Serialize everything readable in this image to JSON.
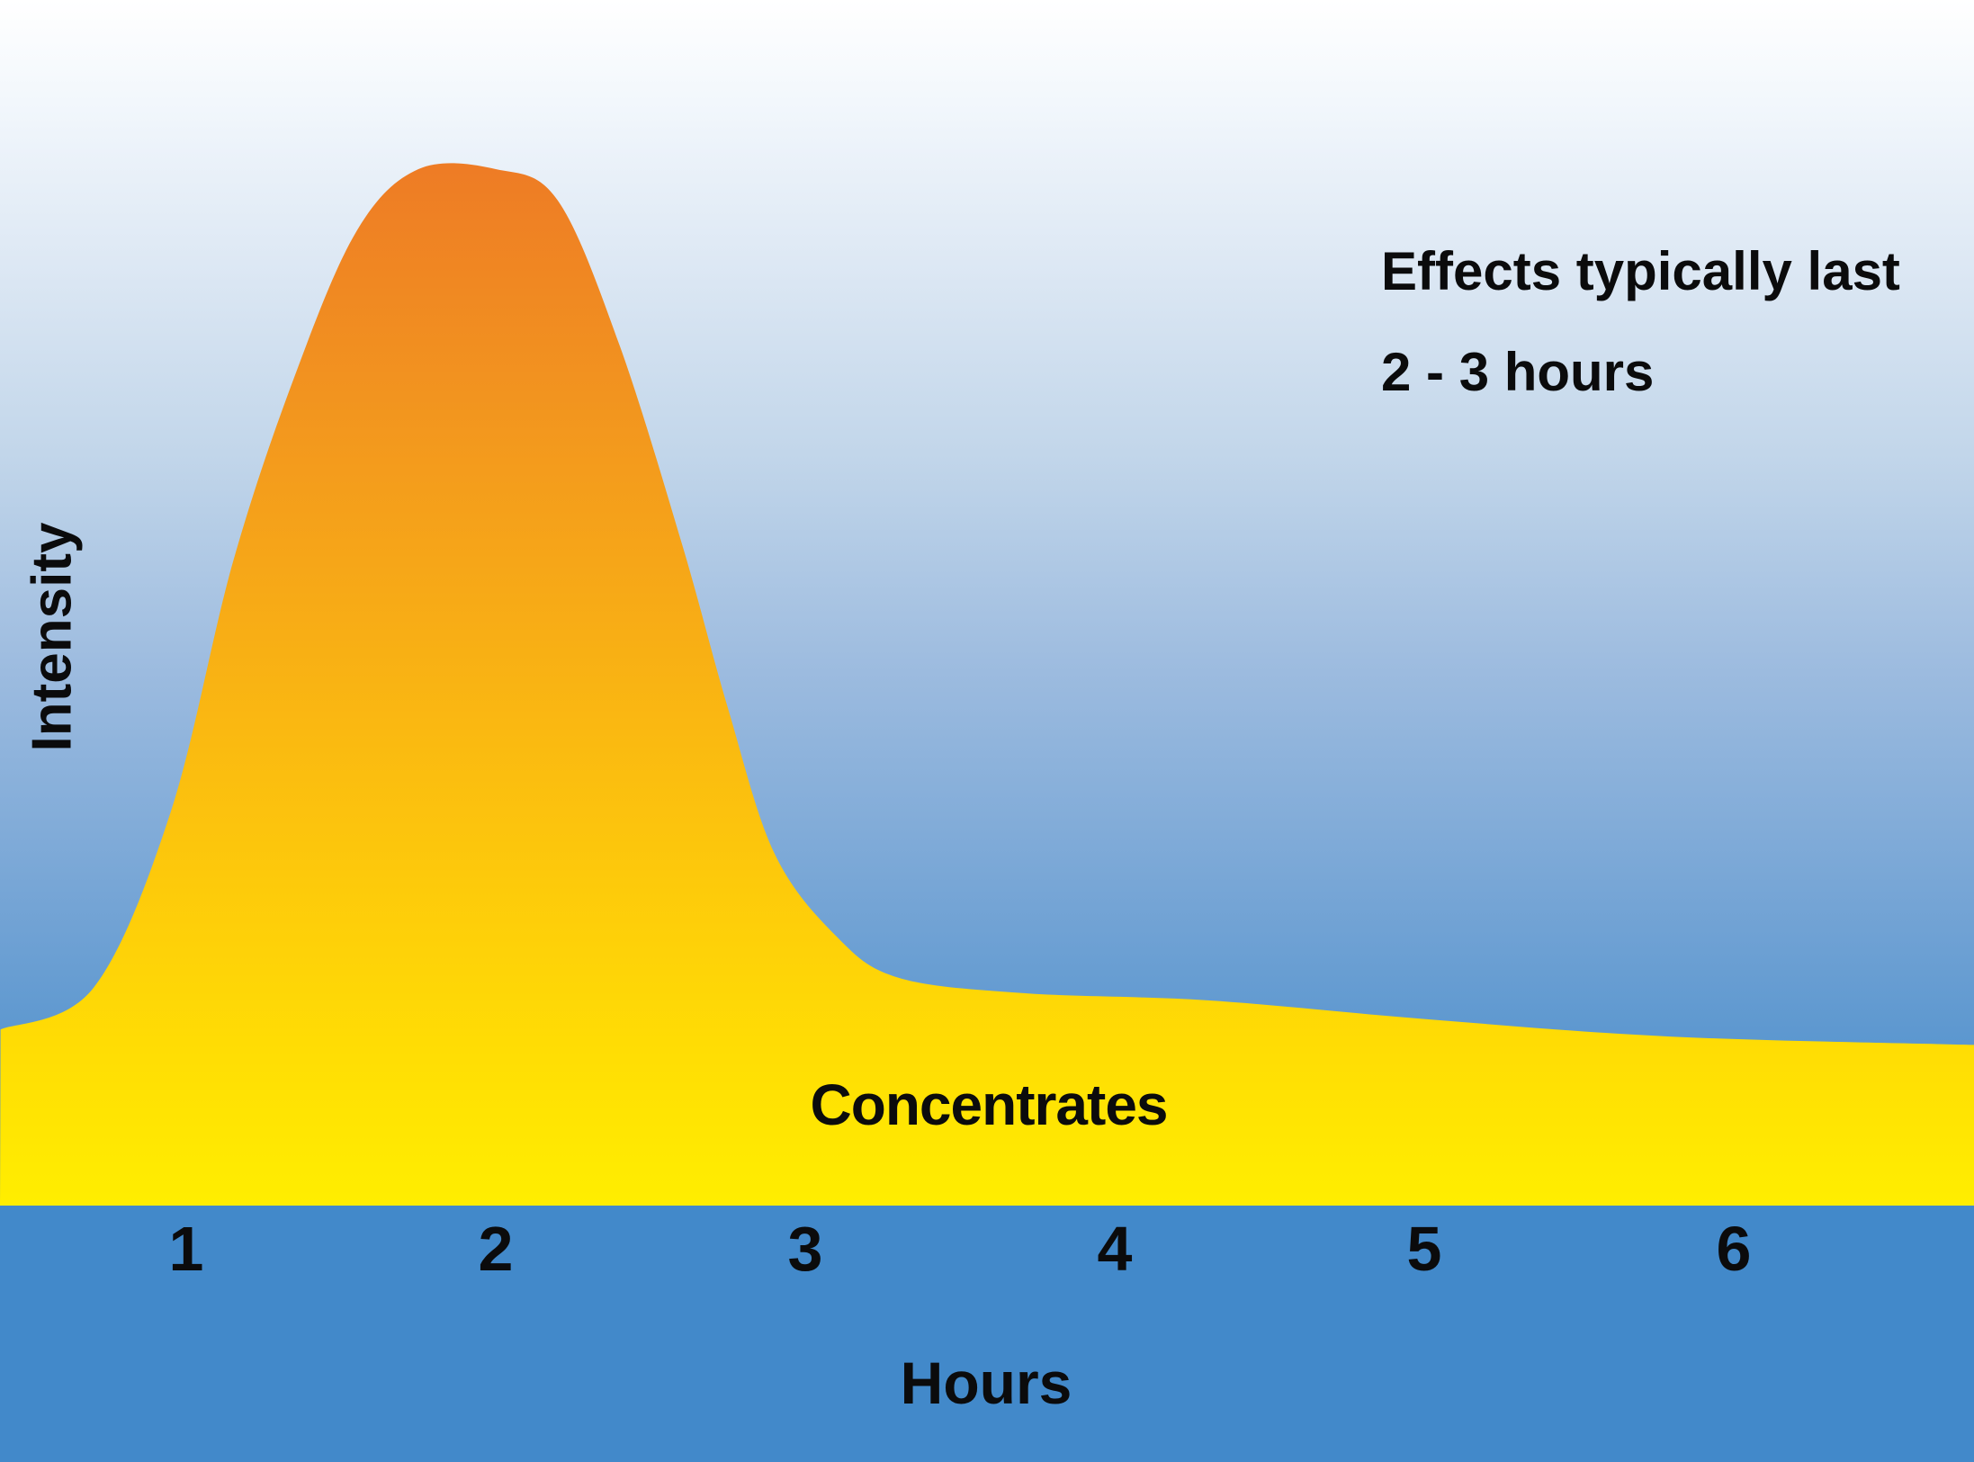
{
  "chart_data": {
    "type": "area",
    "title": "",
    "xlabel": "Hours",
    "ylabel": "Intensity",
    "x_ticks": [
      1,
      2,
      3,
      4,
      5,
      6
    ],
    "x_range_hours": [
      0.4,
      6.8
    ],
    "y_range": [
      0,
      100
    ],
    "y_tick_labels": [],
    "grid": false,
    "legend_position": "none",
    "series": [
      {
        "name": "Concentrates",
        "points": [
          {
            "hour": 0.4,
            "intensity": 17
          },
          {
            "hour": 0.7,
            "intensity": 21
          },
          {
            "hour": 0.95,
            "intensity": 38
          },
          {
            "hour": 1.15,
            "intensity": 62
          },
          {
            "hour": 1.35,
            "intensity": 80
          },
          {
            "hour": 1.55,
            "intensity": 94
          },
          {
            "hour": 1.75,
            "intensity": 100
          },
          {
            "hour": 2.0,
            "intensity": 100
          },
          {
            "hour": 2.2,
            "intensity": 97
          },
          {
            "hour": 2.4,
            "intensity": 83
          },
          {
            "hour": 2.6,
            "intensity": 64
          },
          {
            "hour": 2.75,
            "intensity": 48
          },
          {
            "hour": 2.9,
            "intensity": 34
          },
          {
            "hour": 3.1,
            "intensity": 26
          },
          {
            "hour": 3.3,
            "intensity": 22
          },
          {
            "hour": 3.7,
            "intensity": 20.5
          },
          {
            "hour": 4.3,
            "intensity": 19.8
          },
          {
            "hour": 5.0,
            "intensity": 18
          },
          {
            "hour": 5.8,
            "intensity": 16.3
          },
          {
            "hour": 6.8,
            "intensity": 15.5
          }
        ]
      }
    ],
    "annotation": "Effects typically last 2 - 3 hours"
  },
  "labels": {
    "annotation_line1": "Effects typically last",
    "annotation_line2": "2 - 3 hours"
  },
  "colors": {
    "background_top": "#ffffff",
    "background_bottom": "#4289ca",
    "curve_peak_orange": "#ee7c25",
    "curve_base_yellow": "#ffee00",
    "text": "#0b0b0c"
  }
}
